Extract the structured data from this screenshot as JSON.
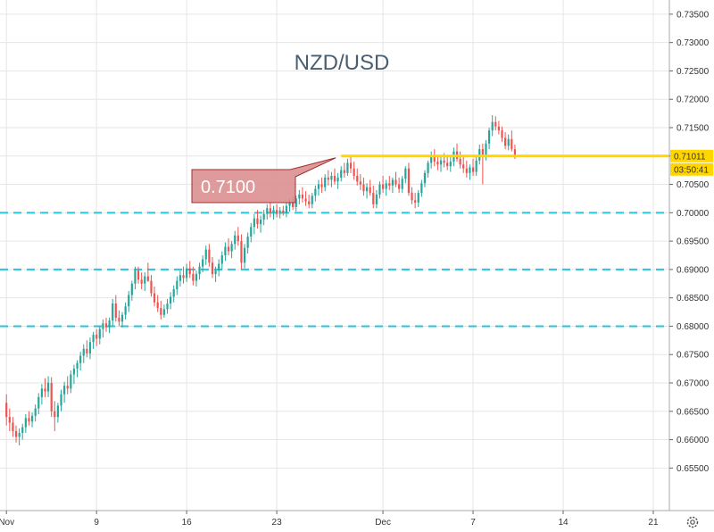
{
  "chart_data": {
    "type": "candlestick",
    "title": "NZD/USD",
    "xlabel": "",
    "ylabel": "",
    "ylim": [
      0.6475,
      0.7375
    ],
    "y_ticks": [
      "0.73500",
      "0.73000",
      "0.72500",
      "0.72000",
      "0.71500",
      "0.71000",
      "0.70500",
      "0.70000",
      "0.69500",
      "0.69000",
      "0.68500",
      "0.68000",
      "0.67500",
      "0.67000",
      "0.66500",
      "0.66000",
      "0.65500"
    ],
    "x_ticks": [
      "Nov",
      "9",
      "16",
      "23",
      "Dec",
      "7",
      "14",
      "21"
    ],
    "x_tick_units": [
      0,
      28,
      56,
      84,
      117,
      145,
      173,
      201
    ],
    "x_unit_range": [
      -2,
      206
    ],
    "grid": true,
    "colors": {
      "up": "#26a69a",
      "down": "#ef5350",
      "support": "#26c6da",
      "resistance": "#ffd600",
      "grid": "#e6e6e6"
    },
    "support_levels": [
      0.7,
      0.69,
      0.68
    ],
    "resistance_level": 0.71,
    "current_price_label": "0.71011",
    "countdown_label": "03:50:41",
    "annotation": {
      "text": "0.7100"
    },
    "series": [
      {
        "candles": [
          [
            0.6665,
            0.668,
            0.6625,
            0.664
          ],
          [
            0.664,
            0.6655,
            0.6615,
            0.663
          ],
          [
            0.663,
            0.664,
            0.6605,
            0.6615
          ],
          [
            0.6615,
            0.6625,
            0.6595,
            0.6605
          ],
          [
            0.6605,
            0.662,
            0.659,
            0.6612
          ],
          [
            0.6612,
            0.6628,
            0.66,
            0.6622
          ],
          [
            0.6622,
            0.6645,
            0.6612,
            0.6638
          ],
          [
            0.6638,
            0.665,
            0.6625,
            0.6632
          ],
          [
            0.6632,
            0.6648,
            0.6622,
            0.6642
          ],
          [
            0.6642,
            0.6662,
            0.6632,
            0.6655
          ],
          [
            0.6655,
            0.6682,
            0.6645,
            0.6675
          ],
          [
            0.6675,
            0.6698,
            0.6662,
            0.669
          ],
          [
            0.669,
            0.6708,
            0.6675,
            0.6685
          ],
          [
            0.6685,
            0.6712,
            0.6675,
            0.67
          ],
          [
            0.67,
            0.671,
            0.664,
            0.665
          ],
          [
            0.665,
            0.6668,
            0.6615,
            0.664
          ],
          [
            0.664,
            0.6665,
            0.663,
            0.666
          ],
          [
            0.666,
            0.6688,
            0.665,
            0.668
          ],
          [
            0.668,
            0.6702,
            0.6665,
            0.6695
          ],
          [
            0.6695,
            0.6712,
            0.668,
            0.669
          ],
          [
            0.669,
            0.6722,
            0.6682,
            0.6715
          ],
          [
            0.6715,
            0.6732,
            0.6698,
            0.6725
          ],
          [
            0.6725,
            0.674,
            0.671,
            0.6735
          ],
          [
            0.6735,
            0.6755,
            0.6722,
            0.6748
          ],
          [
            0.6748,
            0.6768,
            0.6735,
            0.676
          ],
          [
            0.676,
            0.6775,
            0.6745,
            0.6752
          ],
          [
            0.6752,
            0.678,
            0.6742,
            0.6772
          ],
          [
            0.6772,
            0.679,
            0.676,
            0.6785
          ],
          [
            0.6785,
            0.6795,
            0.6765,
            0.6778
          ],
          [
            0.6778,
            0.68,
            0.6768,
            0.6795
          ],
          [
            0.6795,
            0.6812,
            0.678,
            0.6805
          ],
          [
            0.6805,
            0.6815,
            0.679,
            0.6798
          ],
          [
            0.6798,
            0.6815,
            0.6788,
            0.681
          ],
          [
            0.681,
            0.6848,
            0.68,
            0.684
          ],
          [
            0.684,
            0.6855,
            0.6808,
            0.6815
          ],
          [
            0.6815,
            0.6828,
            0.68,
            0.6808
          ],
          [
            0.6808,
            0.6825,
            0.6798,
            0.682
          ],
          [
            0.682,
            0.6842,
            0.6812,
            0.6835
          ],
          [
            0.6835,
            0.6862,
            0.6825,
            0.6855
          ],
          [
            0.6855,
            0.688,
            0.6845,
            0.6875
          ],
          [
            0.6875,
            0.6905,
            0.6865,
            0.6898
          ],
          [
            0.6898,
            0.6905,
            0.6875,
            0.6882
          ],
          [
            0.6882,
            0.6895,
            0.6865,
            0.6875
          ],
          [
            0.6875,
            0.6895,
            0.6862,
            0.6888
          ],
          [
            0.6888,
            0.6912,
            0.6878,
            0.688
          ],
          [
            0.688,
            0.689,
            0.6852,
            0.6858
          ],
          [
            0.6858,
            0.687,
            0.6835,
            0.6842
          ],
          [
            0.6842,
            0.6855,
            0.6825,
            0.6832
          ],
          [
            0.6832,
            0.6845,
            0.6812,
            0.682
          ],
          [
            0.682,
            0.6838,
            0.6815,
            0.683
          ],
          [
            0.683,
            0.6848,
            0.6822,
            0.684
          ],
          [
            0.684,
            0.686,
            0.683,
            0.6852
          ],
          [
            0.6852,
            0.6872,
            0.6842,
            0.6865
          ],
          [
            0.6865,
            0.6888,
            0.6855,
            0.688
          ],
          [
            0.688,
            0.6898,
            0.687,
            0.689
          ],
          [
            0.689,
            0.6905,
            0.6875,
            0.6885
          ],
          [
            0.6885,
            0.691,
            0.6878,
            0.6902
          ],
          [
            0.6902,
            0.6915,
            0.6885,
            0.6892
          ],
          [
            0.6892,
            0.6905,
            0.6872,
            0.688
          ],
          [
            0.688,
            0.6898,
            0.687,
            0.6892
          ],
          [
            0.6892,
            0.6912,
            0.6882,
            0.6905
          ],
          [
            0.6905,
            0.6925,
            0.6895,
            0.6918
          ],
          [
            0.6918,
            0.6942,
            0.6908,
            0.6935
          ],
          [
            0.6935,
            0.6945,
            0.6905,
            0.6912
          ],
          [
            0.6912,
            0.6922,
            0.6885,
            0.6892
          ],
          [
            0.6892,
            0.6905,
            0.6878,
            0.6898
          ],
          [
            0.6898,
            0.6918,
            0.6888,
            0.691
          ],
          [
            0.691,
            0.6932,
            0.69,
            0.6925
          ],
          [
            0.6925,
            0.6948,
            0.6915,
            0.694
          ],
          [
            0.694,
            0.6955,
            0.6925,
            0.6932
          ],
          [
            0.6932,
            0.695,
            0.692,
            0.6945
          ],
          [
            0.6945,
            0.6968,
            0.6935,
            0.696
          ],
          [
            0.696,
            0.6975,
            0.6942,
            0.695
          ],
          [
            0.695,
            0.6962,
            0.69,
            0.6912
          ],
          [
            0.6912,
            0.6945,
            0.6902,
            0.6938
          ],
          [
            0.6938,
            0.6965,
            0.6928,
            0.6958
          ],
          [
            0.6958,
            0.6982,
            0.6948,
            0.6975
          ],
          [
            0.6975,
            0.6998,
            0.6962,
            0.699
          ],
          [
            0.699,
            0.7005,
            0.6972,
            0.698
          ],
          [
            0.698,
            0.6995,
            0.6965,
            0.6988
          ],
          [
            0.6988,
            0.7005,
            0.6978,
            0.6998
          ],
          [
            0.6998,
            0.7015,
            0.6988,
            0.7008
          ],
          [
            0.7008,
            0.7018,
            0.6992,
            0.7
          ],
          [
            0.7,
            0.7012,
            0.6988,
            0.7005
          ],
          [
            0.7005,
            0.7015,
            0.6992,
            0.6998
          ],
          [
            0.6998,
            0.701,
            0.699,
            0.7004
          ],
          [
            0.7004,
            0.7012,
            0.6995,
            0.7
          ],
          [
            0.7,
            0.7018,
            0.6992,
            0.7012
          ],
          [
            0.7012,
            0.7025,
            0.7002,
            0.7018
          ],
          [
            0.7018,
            0.7028,
            0.7005,
            0.701
          ],
          [
            0.701,
            0.703,
            0.7002,
            0.7025
          ],
          [
            0.7025,
            0.704,
            0.7015,
            0.7032
          ],
          [
            0.7032,
            0.7045,
            0.7018,
            0.7025
          ],
          [
            0.7025,
            0.7038,
            0.7012,
            0.702
          ],
          [
            0.702,
            0.7032,
            0.7008,
            0.7015
          ],
          [
            0.7015,
            0.7035,
            0.7008,
            0.703
          ],
          [
            0.703,
            0.7048,
            0.702,
            0.7042
          ],
          [
            0.7042,
            0.7058,
            0.703,
            0.705
          ],
          [
            0.705,
            0.7062,
            0.7035,
            0.7045
          ],
          [
            0.7045,
            0.7068,
            0.7038,
            0.7062
          ],
          [
            0.7062,
            0.7075,
            0.7048,
            0.7058
          ],
          [
            0.7058,
            0.7072,
            0.7045,
            0.7065
          ],
          [
            0.7065,
            0.7078,
            0.705,
            0.7055
          ],
          [
            0.7055,
            0.707,
            0.7042,
            0.7062
          ],
          [
            0.7062,
            0.7082,
            0.7055,
            0.7075
          ],
          [
            0.7075,
            0.7088,
            0.7062,
            0.707
          ],
          [
            0.707,
            0.7095,
            0.7065,
            0.7088
          ],
          [
            0.7088,
            0.7102,
            0.707,
            0.7078
          ],
          [
            0.7078,
            0.709,
            0.7058,
            0.7065
          ],
          [
            0.7065,
            0.7078,
            0.7048,
            0.7055
          ],
          [
            0.7055,
            0.7068,
            0.704,
            0.705
          ],
          [
            0.705,
            0.7062,
            0.703,
            0.7038
          ],
          [
            0.7038,
            0.7052,
            0.7025,
            0.7045
          ],
          [
            0.7045,
            0.7058,
            0.703,
            0.7035
          ],
          [
            0.7035,
            0.7048,
            0.7008,
            0.7015
          ],
          [
            0.7015,
            0.704,
            0.7008,
            0.7032
          ],
          [
            0.7032,
            0.7055,
            0.7025,
            0.705
          ],
          [
            0.705,
            0.7065,
            0.7035,
            0.7042
          ],
          [
            0.7042,
            0.7058,
            0.703,
            0.7052
          ],
          [
            0.7052,
            0.7065,
            0.704,
            0.7048
          ],
          [
            0.7048,
            0.7062,
            0.7035,
            0.7058
          ],
          [
            0.7058,
            0.7072,
            0.7045,
            0.705
          ],
          [
            0.705,
            0.7062,
            0.7035,
            0.7042
          ],
          [
            0.7042,
            0.7065,
            0.7035,
            0.706
          ],
          [
            0.706,
            0.7082,
            0.7052,
            0.7078
          ],
          [
            0.7078,
            0.7088,
            0.703,
            0.7035
          ],
          [
            0.7035,
            0.7045,
            0.7015,
            0.7022
          ],
          [
            0.7022,
            0.7035,
            0.7008,
            0.7018
          ],
          [
            0.7018,
            0.704,
            0.701,
            0.7035
          ],
          [
            0.7035,
            0.7058,
            0.7028,
            0.7052
          ],
          [
            0.7052,
            0.7075,
            0.7045,
            0.707
          ],
          [
            0.707,
            0.7092,
            0.7062,
            0.7088
          ],
          [
            0.7088,
            0.7108,
            0.7078,
            0.71
          ],
          [
            0.71,
            0.7112,
            0.7082,
            0.709
          ],
          [
            0.709,
            0.7102,
            0.7075,
            0.7085
          ],
          [
            0.7085,
            0.7098,
            0.7072,
            0.7092
          ],
          [
            0.7092,
            0.7105,
            0.708,
            0.7088
          ],
          [
            0.7088,
            0.71,
            0.7075,
            0.7082
          ],
          [
            0.7082,
            0.7098,
            0.7072,
            0.709
          ],
          [
            0.709,
            0.7115,
            0.7082,
            0.7108
          ],
          [
            0.7108,
            0.7122,
            0.709,
            0.7095
          ],
          [
            0.7095,
            0.7108,
            0.7078,
            0.7085
          ],
          [
            0.7085,
            0.7098,
            0.707,
            0.7078
          ],
          [
            0.7078,
            0.7092,
            0.7062,
            0.707
          ],
          [
            0.707,
            0.7085,
            0.7058,
            0.708
          ],
          [
            0.708,
            0.7095,
            0.7065,
            0.7072
          ],
          [
            0.7072,
            0.7098,
            0.7065,
            0.7092
          ],
          [
            0.7092,
            0.712,
            0.7085,
            0.7112
          ],
          [
            0.7112,
            0.7122,
            0.705,
            0.71
          ],
          [
            0.71,
            0.7128,
            0.7092,
            0.7122
          ],
          [
            0.7122,
            0.715,
            0.7112,
            0.7145
          ],
          [
            0.7145,
            0.7172,
            0.7135,
            0.716
          ],
          [
            0.716,
            0.717,
            0.7145,
            0.7152
          ],
          [
            0.7152,
            0.7162,
            0.7138,
            0.7145
          ],
          [
            0.7145,
            0.7152,
            0.7125,
            0.7132
          ],
          [
            0.7132,
            0.7142,
            0.7112,
            0.7118
          ],
          [
            0.7118,
            0.7138,
            0.711,
            0.713
          ],
          [
            0.713,
            0.7145,
            0.7108,
            0.7112
          ],
          [
            0.7112,
            0.712,
            0.7095,
            0.7101
          ]
        ]
      }
    ]
  }
}
